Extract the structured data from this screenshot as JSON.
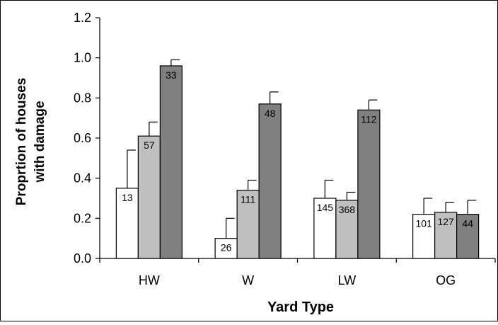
{
  "chart_data": {
    "type": "bar",
    "categories": [
      "HW",
      "W",
      "LW",
      "OG"
    ],
    "series": [
      {
        "values": [
          0.35,
          0.1,
          0.3,
          0.22
        ],
        "errors": [
          0.19,
          0.1,
          0.09,
          0.08
        ],
        "labels": [
          "13",
          "26",
          "145",
          "101"
        ],
        "color": "#ffffff"
      },
      {
        "values": [
          0.61,
          0.34,
          0.29,
          0.23
        ],
        "errors": [
          0.07,
          0.05,
          0.04,
          0.05
        ],
        "labels": [
          "57",
          "111",
          "368",
          "127"
        ],
        "color": "#c0c0c0"
      },
      {
        "values": [
          0.96,
          0.77,
          0.74,
          0.22
        ],
        "errors": [
          0.03,
          0.06,
          0.05,
          0.07
        ],
        "labels": [
          "33",
          "48",
          "112",
          "44"
        ],
        "color": "#808080"
      }
    ],
    "ylabel_lines": [
      "Proprtion of houses",
      "with damage"
    ],
    "xlabel": "Yard Type",
    "ylim": [
      0,
      1.2
    ],
    "yticks": [
      "0.0",
      "0.2",
      "0.4",
      "0.6",
      "0.8",
      "1.0",
      "1.2"
    ],
    "grid": false,
    "legend": "none"
  }
}
